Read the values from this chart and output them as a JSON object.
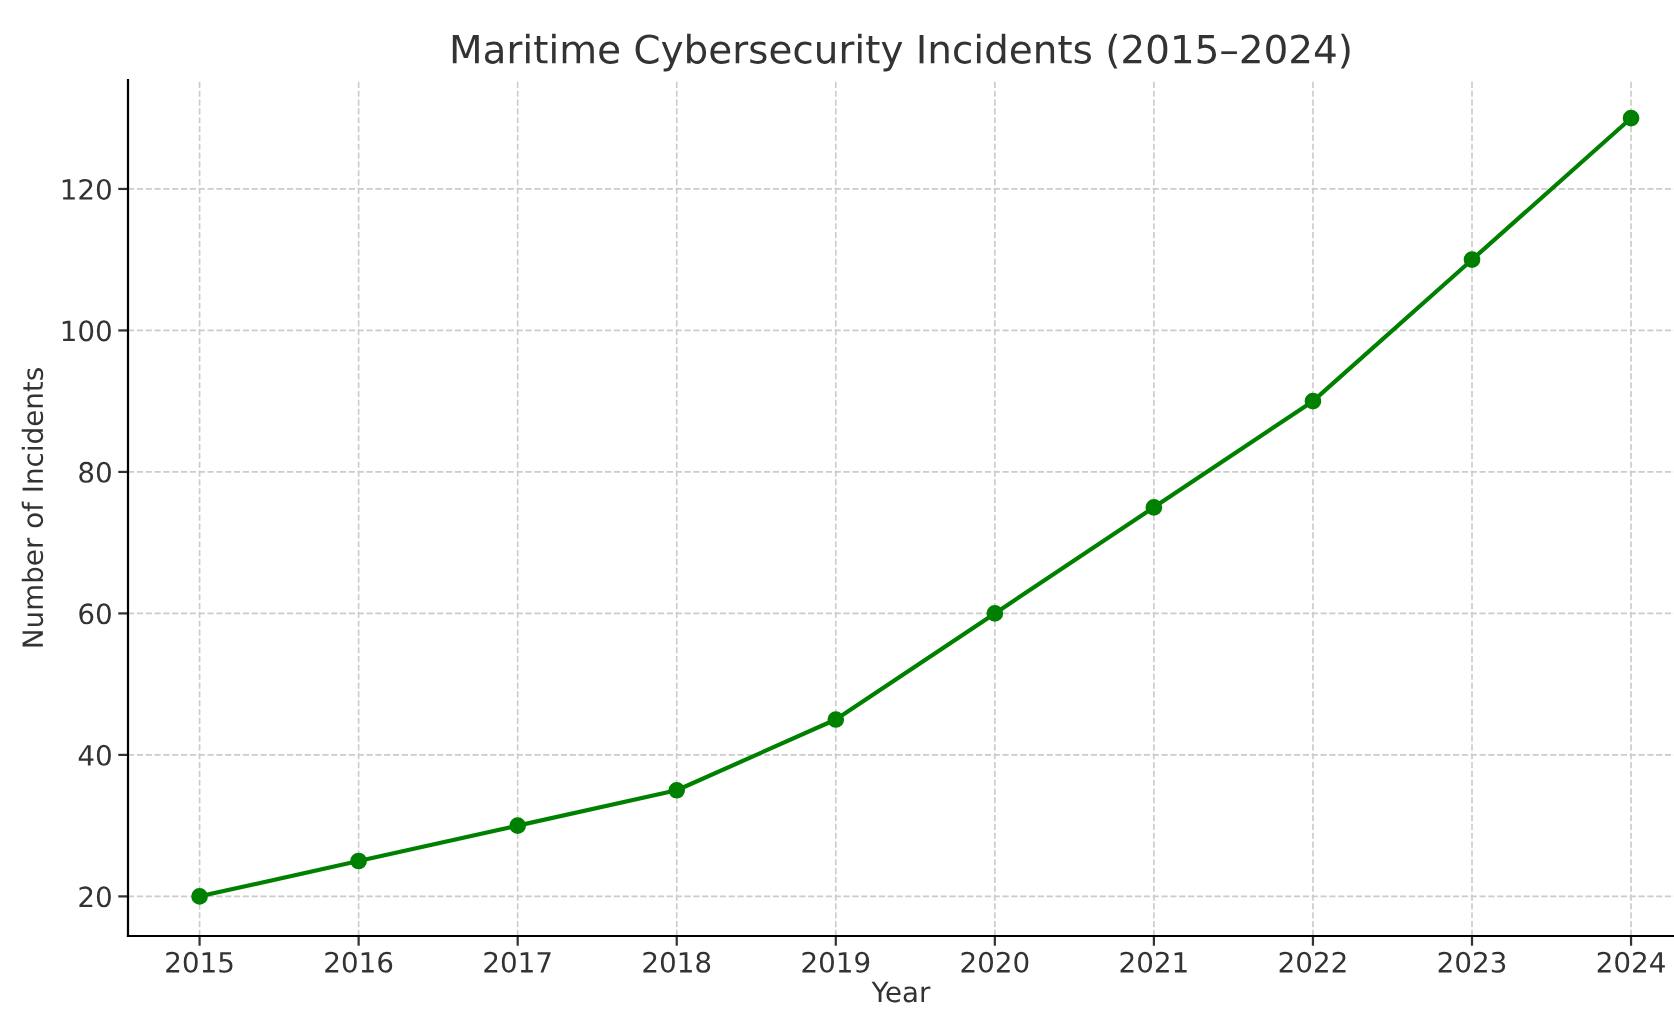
{
  "chart_data": {
    "type": "line",
    "title": "Maritime Cybersecurity Incidents (2015–2024)",
    "xlabel": "Year",
    "ylabel": "Number of Incidents",
    "x": [
      2015,
      2016,
      2017,
      2018,
      2019,
      2020,
      2021,
      2022,
      2023,
      2024
    ],
    "series": [
      {
        "color": "#008000",
        "values": [
          20,
          25,
          30,
          35,
          45,
          60,
          75,
          90,
          110,
          130
        ]
      }
    ],
    "xlim": [
      2014.55,
      2024.27
    ],
    "xticks": [
      2015,
      2016,
      2017,
      2018,
      2019,
      2020,
      2021,
      2022,
      2023,
      2024
    ],
    "ylim": [
      14.4,
      135.4
    ],
    "yticks": [
      20,
      40,
      60,
      80,
      100,
      120
    ],
    "grid": true,
    "marker": "circle",
    "line_style": "solid",
    "legend": false
  }
}
